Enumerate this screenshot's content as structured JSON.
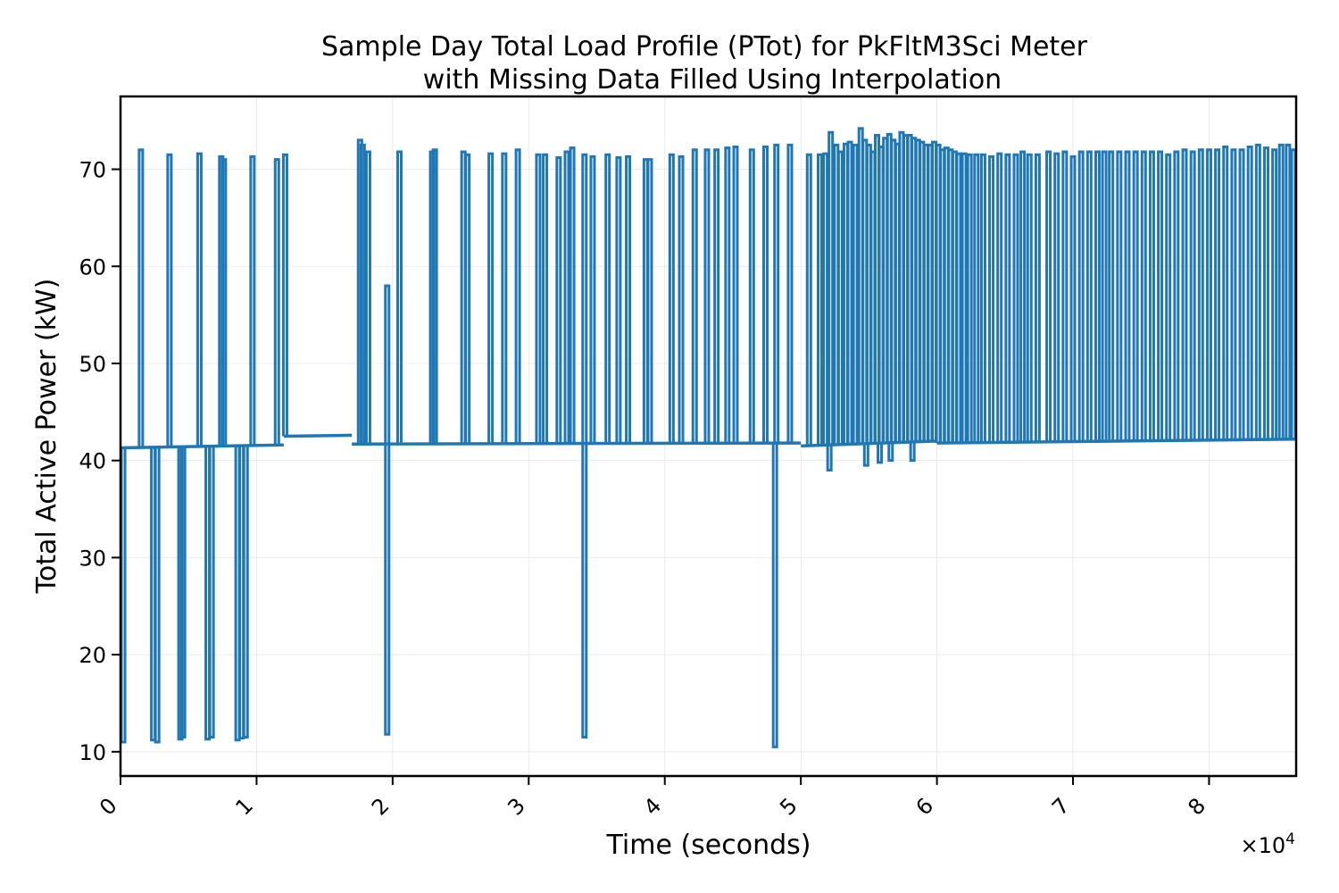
{
  "chart_data": {
    "type": "line",
    "title": "Sample Day Total Load Profile (PTot) for PkFltM3Sci Meter",
    "subtitle": "with Missing Data Filled Using Interpolation",
    "xlabel": "Time (seconds)",
    "ylabel": "Total Active Power (kW)",
    "x_multiplier_label": "×10",
    "x_multiplier_exponent": "4",
    "xlim": [
      0,
      86400
    ],
    "ylim": [
      7.5,
      77.5
    ],
    "x_ticks": [
      0,
      10000,
      20000,
      30000,
      40000,
      50000,
      60000,
      70000,
      80000
    ],
    "x_tick_labels": [
      "0",
      "1",
      "2",
      "3",
      "4",
      "5",
      "6",
      "7",
      "8"
    ],
    "y_ticks": [
      10,
      20,
      30,
      40,
      50,
      60,
      70
    ],
    "y_tick_labels": [
      "10",
      "20",
      "30",
      "40",
      "50",
      "60",
      "70"
    ],
    "grid": true,
    "legend": false,
    "series": [
      {
        "color": "#1f77b4",
        "baseline_segments": [
          {
            "x": [
              0,
              12000
            ],
            "y": [
              41.3,
              41.6
            ]
          },
          {
            "x": [
              12000,
              17000
            ],
            "y": [
              42.5,
              42.6
            ]
          },
          {
            "x": [
              17000,
              50000
            ],
            "y": [
              41.7,
              41.8
            ]
          },
          {
            "x": [
              50000,
              60000
            ],
            "y": [
              41.5,
              42.0
            ]
          },
          {
            "x": [
              60000,
              86400
            ],
            "y": [
              41.8,
              42.2
            ]
          }
        ],
        "spikes_up": [
          [
            1500,
            72.0
          ],
          [
            3600,
            71.5
          ],
          [
            5800,
            71.6
          ],
          [
            7400,
            71.3
          ],
          [
            7600,
            71.0
          ],
          [
            9700,
            71.3
          ],
          [
            11500,
            71.0
          ],
          [
            12100,
            71.5
          ],
          [
            17600,
            73.0
          ],
          [
            17800,
            72.5
          ],
          [
            18200,
            71.8
          ],
          [
            19600,
            58.0
          ],
          [
            20500,
            71.8
          ],
          [
            22900,
            71.8
          ],
          [
            23100,
            72.0
          ],
          [
            25200,
            71.8
          ],
          [
            25500,
            71.5
          ],
          [
            27200,
            71.6
          ],
          [
            28200,
            71.6
          ],
          [
            29200,
            72.0
          ],
          [
            30700,
            71.5
          ],
          [
            31200,
            71.5
          ],
          [
            32200,
            71.2
          ],
          [
            32800,
            71.8
          ],
          [
            33200,
            72.2
          ],
          [
            34100,
            71.5
          ],
          [
            34700,
            71.3
          ],
          [
            35800,
            71.5
          ],
          [
            36600,
            71.2
          ],
          [
            37300,
            71.3
          ],
          [
            38600,
            71.0
          ],
          [
            38900,
            71.0
          ],
          [
            40500,
            71.5
          ],
          [
            41200,
            71.3
          ],
          [
            42200,
            72.0
          ],
          [
            43100,
            72.0
          ],
          [
            43800,
            72.0
          ],
          [
            44600,
            72.2
          ],
          [
            45200,
            72.3
          ],
          [
            46400,
            72.0
          ],
          [
            47400,
            72.3
          ],
          [
            48200,
            72.5
          ],
          [
            49200,
            72.5
          ],
          [
            50600,
            71.5
          ],
          [
            51400,
            71.5
          ],
          [
            51800,
            71.6
          ],
          [
            52200,
            73.8
          ],
          [
            52600,
            72.5
          ],
          [
            52900,
            71.8
          ],
          [
            53300,
            72.6
          ],
          [
            53600,
            72.8
          ],
          [
            54000,
            72.5
          ],
          [
            54400,
            74.2
          ],
          [
            54700,
            73.0
          ],
          [
            55000,
            72.5
          ],
          [
            55300,
            71.8
          ],
          [
            55600,
            73.5
          ],
          [
            55900,
            72.3
          ],
          [
            56200,
            73.2
          ],
          [
            56500,
            73.6
          ],
          [
            56800,
            73.0
          ],
          [
            57100,
            72.6
          ],
          [
            57400,
            73.8
          ],
          [
            57700,
            73.5
          ],
          [
            58000,
            73.5
          ],
          [
            58300,
            73.2
          ],
          [
            58600,
            73.0
          ],
          [
            58900,
            72.8
          ],
          [
            59200,
            72.5
          ],
          [
            59500,
            72.5
          ],
          [
            59800,
            72.8
          ],
          [
            60100,
            72.5
          ],
          [
            60400,
            72.0
          ],
          [
            60700,
            72.2
          ],
          [
            61000,
            72.0
          ],
          [
            61300,
            71.8
          ],
          [
            61600,
            71.6
          ],
          [
            62000,
            71.6
          ],
          [
            62400,
            71.5
          ],
          [
            62900,
            71.5
          ],
          [
            63400,
            71.5
          ],
          [
            64000,
            71.3
          ],
          [
            64600,
            71.6
          ],
          [
            65200,
            71.5
          ],
          [
            65800,
            71.5
          ],
          [
            66300,
            71.8
          ],
          [
            66800,
            71.5
          ],
          [
            67400,
            71.5
          ],
          [
            68200,
            71.8
          ],
          [
            68800,
            71.6
          ],
          [
            69400,
            71.8
          ],
          [
            70000,
            71.3
          ],
          [
            70600,
            71.8
          ],
          [
            71200,
            71.8
          ],
          [
            71800,
            71.8
          ],
          [
            72300,
            71.8
          ],
          [
            72800,
            71.8
          ],
          [
            73400,
            71.8
          ],
          [
            74000,
            71.8
          ],
          [
            74600,
            71.8
          ],
          [
            75200,
            71.8
          ],
          [
            75800,
            71.8
          ],
          [
            76400,
            71.8
          ],
          [
            77000,
            71.5
          ],
          [
            77600,
            71.8
          ],
          [
            78200,
            72.0
          ],
          [
            78800,
            71.8
          ],
          [
            79400,
            72.0
          ],
          [
            80000,
            72.0
          ],
          [
            80600,
            72.0
          ],
          [
            81200,
            72.3
          ],
          [
            81800,
            72.0
          ],
          [
            82400,
            72.0
          ],
          [
            83000,
            72.3
          ],
          [
            83600,
            72.5
          ],
          [
            84200,
            72.2
          ],
          [
            84800,
            72.0
          ],
          [
            85300,
            72.5
          ],
          [
            85800,
            72.5
          ],
          [
            86200,
            72.0
          ]
        ],
        "spikes_down": [
          [
            200,
            11.0
          ],
          [
            2400,
            11.2
          ],
          [
            2700,
            11.0
          ],
          [
            4400,
            11.3
          ],
          [
            4600,
            11.5
          ],
          [
            6400,
            11.3
          ],
          [
            6700,
            11.5
          ],
          [
            8600,
            11.2
          ],
          [
            8900,
            11.4
          ],
          [
            9200,
            11.5
          ],
          [
            19600,
            11.8
          ],
          [
            34100,
            11.5
          ],
          [
            48100,
            10.5
          ],
          [
            52100,
            39.0
          ],
          [
            54800,
            39.5
          ],
          [
            55800,
            39.8
          ],
          [
            56600,
            40.0
          ],
          [
            58200,
            40.0
          ]
        ]
      }
    ]
  }
}
